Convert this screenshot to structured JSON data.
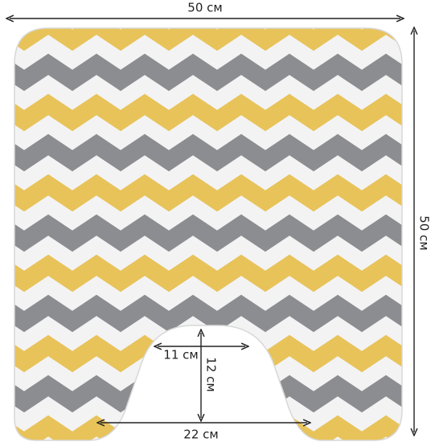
{
  "dimensions": {
    "top_width": "50 см",
    "right_height": "50 см",
    "cutout_depth": "11 см",
    "cutout_height": "12 см",
    "bottom_width": "22 см"
  }
}
